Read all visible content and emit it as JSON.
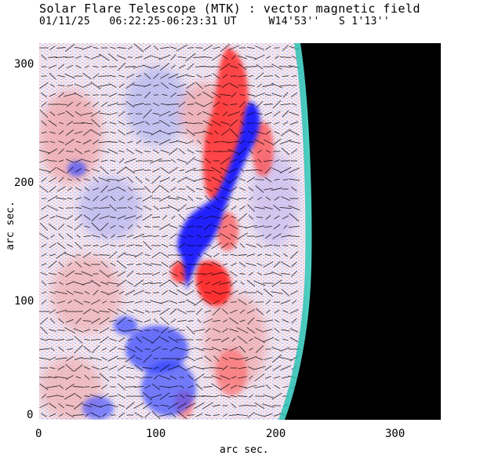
{
  "header": {
    "title": "Solar Flare Telescope (MTK) : vector magnetic field",
    "subtitle": "01/11/25   06:22:25-06:23:31 UT     W14'53''   S 1'13''"
  },
  "axes": {
    "xlabel": "arc sec.",
    "ylabel": "arc sec.",
    "xticks": [
      "0",
      "100",
      "200",
      "300"
    ],
    "yticks": [
      "0",
      "100",
      "200",
      "300"
    ]
  },
  "image": {
    "description_colors": {
      "positive": "#ff2020",
      "negative": "#1010ff",
      "background_mid": "#e8d8f0",
      "offdisk": "#000000",
      "limb": "#20c0c0"
    }
  }
}
